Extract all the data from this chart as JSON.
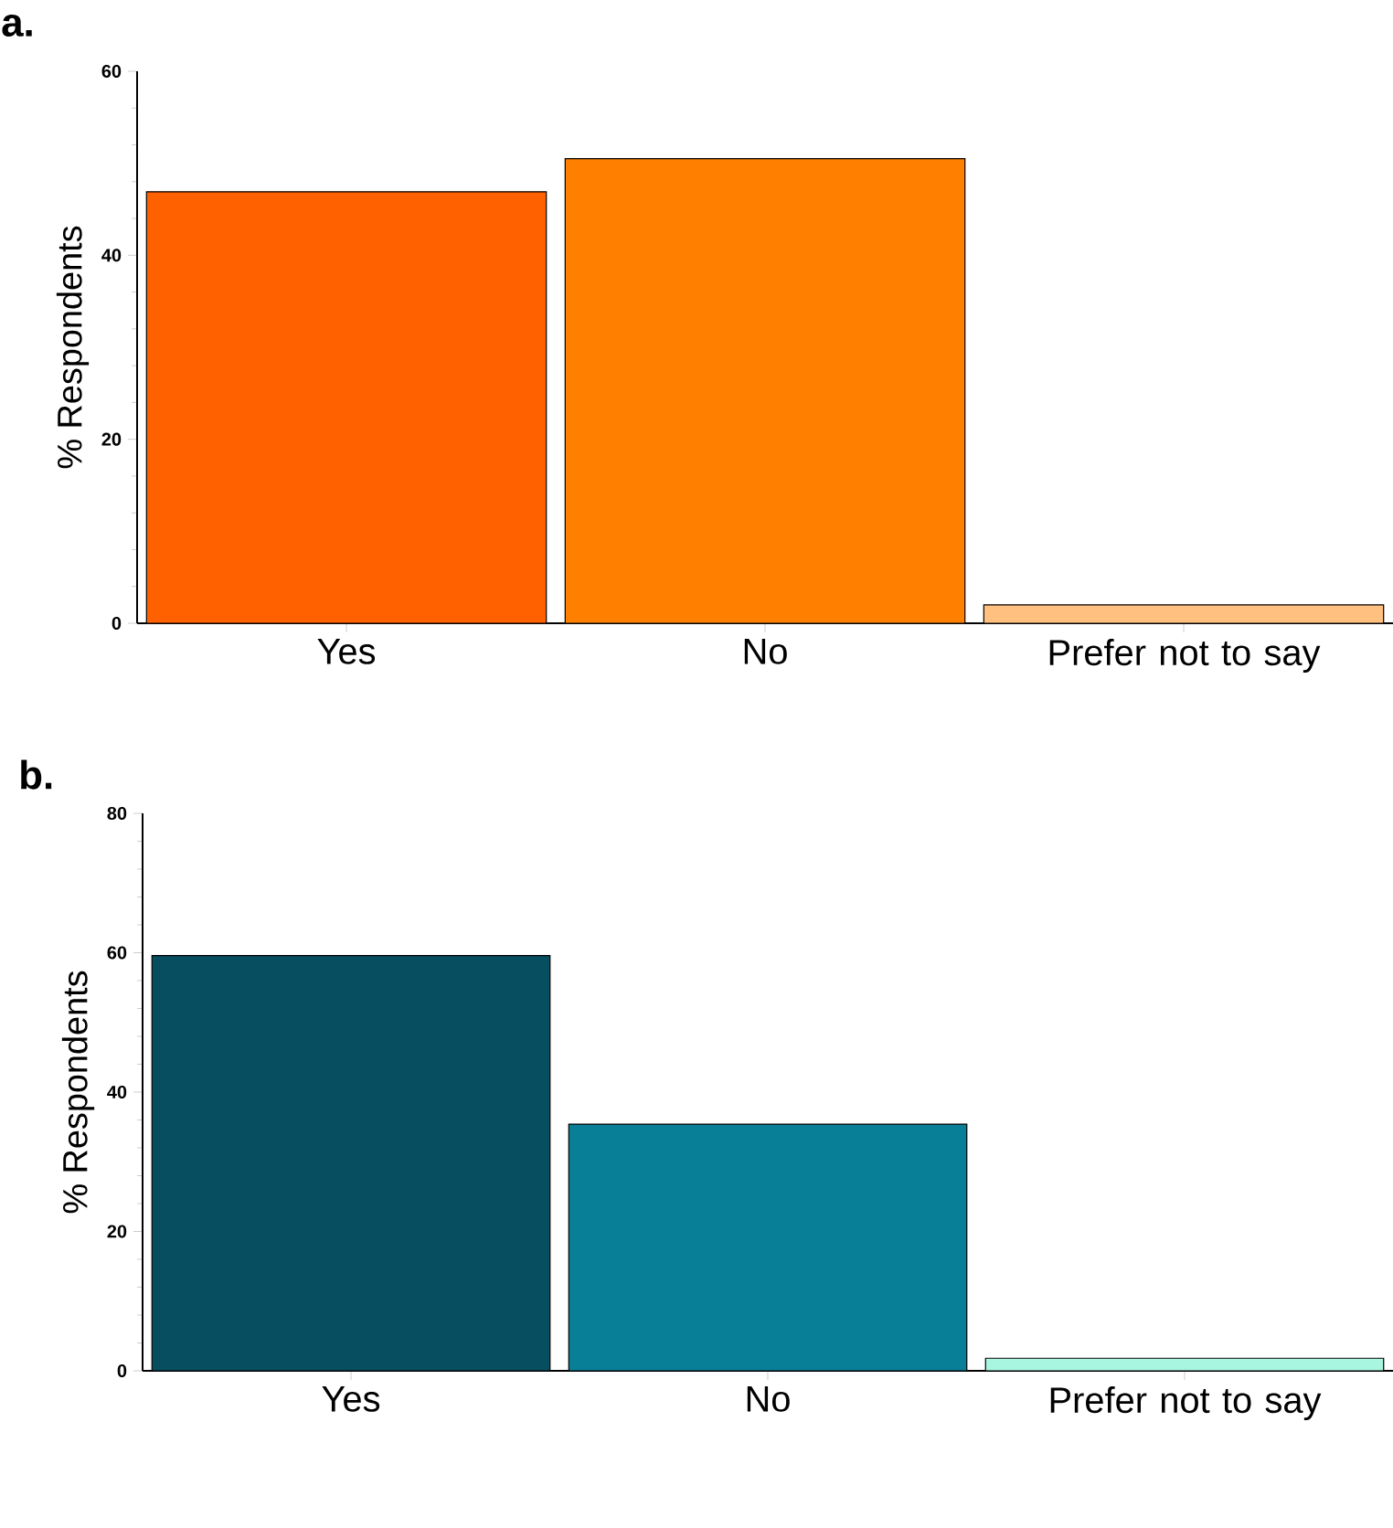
{
  "chart_data": [
    {
      "type": "bar",
      "title": "a.",
      "ylabel": "% Respondents",
      "categories": [
        "Yes",
        "No",
        "Prefer not to say"
      ],
      "values": [
        46.9,
        50.5,
        2.0
      ],
      "colors": [
        "#ff6000",
        "#ff8000",
        "#ffc080"
      ],
      "ylim": [
        0,
        60
      ],
      "yticks": [
        0,
        20,
        40,
        60
      ]
    },
    {
      "type": "bar",
      "title": "b.",
      "ylabel": "% Respondents",
      "categories": [
        "Yes",
        "No",
        "Prefer not to say"
      ],
      "values": [
        59.6,
        35.4,
        1.8
      ],
      "colors": [
        "#074f60",
        "#097f97",
        "#a8f5e0"
      ],
      "ylim": [
        0,
        80
      ],
      "yticks": [
        0,
        20,
        40,
        60,
        80
      ]
    }
  ]
}
